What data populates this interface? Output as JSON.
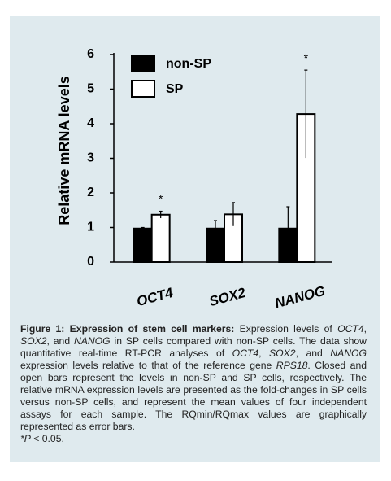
{
  "chart_data": {
    "type": "bar",
    "ylabel": "Relative mRNA levels",
    "categories": [
      "OCT4",
      "SOX2",
      "NANOG"
    ],
    "series": [
      {
        "name": "non-SP",
        "color": "#000000",
        "values": [
          0.97,
          0.97,
          0.97
        ],
        "errors": [
          0.03,
          0.23,
          0.63
        ]
      },
      {
        "name": "SP",
        "color": "#ffffff",
        "values": [
          1.37,
          1.38,
          4.28
        ],
        "errors": [
          0.1,
          0.34,
          1.27
        ],
        "value_annotations": [
          "*",
          null,
          "*"
        ]
      }
    ],
    "ylim": [
      0,
      6
    ],
    "yticks": [
      0,
      1,
      2,
      3,
      4,
      5,
      6
    ],
    "grid": false,
    "legend": "upper left"
  },
  "caption": [
    {
      "text": "Figure 1: Expression of stem cell markers:",
      "style": "bold"
    },
    {
      "text": " Expression levels of ",
      "style": "normal"
    },
    {
      "text": "OCT4",
      "style": "italic"
    },
    {
      "text": ", ",
      "style": "normal"
    },
    {
      "text": "SOX2",
      "style": "italic"
    },
    {
      "text": ", and ",
      "style": "normal"
    },
    {
      "text": "NANOG",
      "style": "italic"
    },
    {
      "text": " in SP cells compared with non-SP cells. The data show quantitative real-time RT-PCR analyses of ",
      "style": "normal"
    },
    {
      "text": "OCT4",
      "style": "italic"
    },
    {
      "text": ", ",
      "style": "normal"
    },
    {
      "text": "SOX2",
      "style": "italic"
    },
    {
      "text": ", and ",
      "style": "normal"
    },
    {
      "text": "NANOG",
      "style": "italic"
    },
    {
      "text": " expression levels relative to that of the reference gene ",
      "style": "normal"
    },
    {
      "text": "RPS18",
      "style": "italic"
    },
    {
      "text": ". Closed and open bars represent the levels in non-SP and SP cells, respectively. The relative mRNA expression levels are presented as the fold-changes in SP cells versus non-SP cells, and represent the mean values of four independent assays for each sample. The RQmin/RQmax values are graphically represented as error bars.",
      "style": "normal"
    }
  ],
  "footnote": [
    {
      "text": "*P",
      "style": "italic"
    },
    {
      "text": " < 0.05.",
      "style": "normal"
    }
  ]
}
